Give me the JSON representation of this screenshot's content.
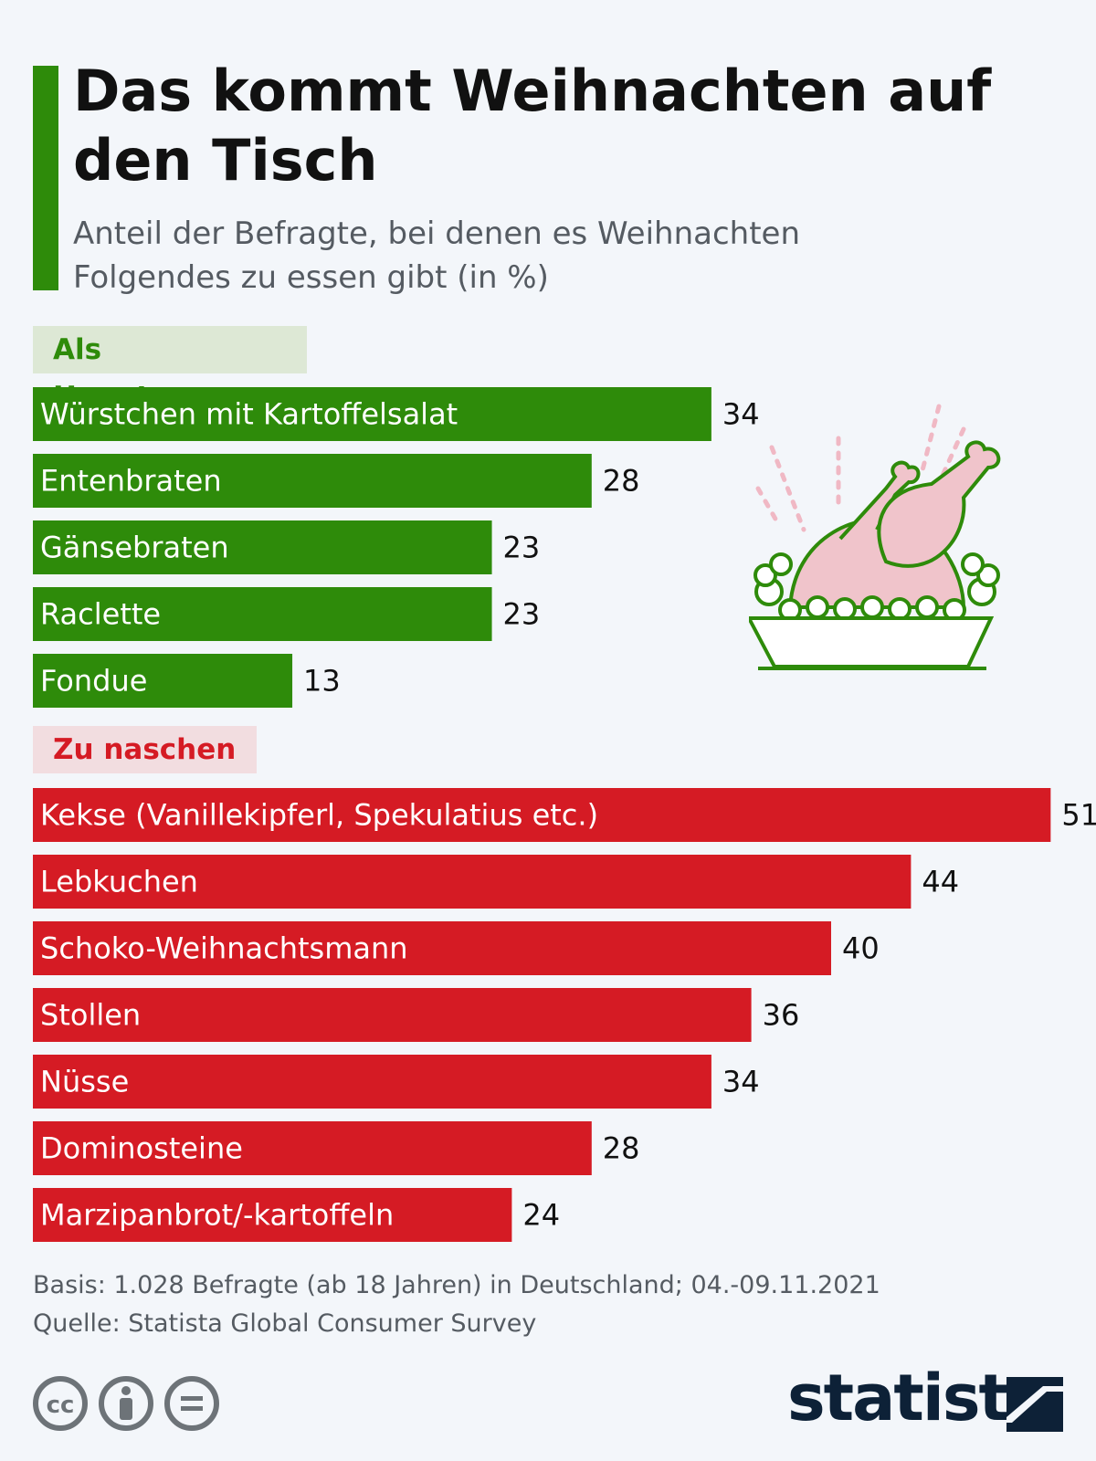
{
  "header": {
    "title": "Das kommt Weihnachten auf den Tisch",
    "subtitle": "Anteil der Befragte, bei denen es Weihnachten Folgendes zu essen gibt (in %)"
  },
  "colors": {
    "main_course": "#2e8b0a",
    "snacks": "#d51b24",
    "text": "#111111",
    "logo": "#0d2137"
  },
  "chart_data": {
    "type": "bar",
    "orientation": "horizontal",
    "title": "Das kommt Weihnachten auf den Tisch",
    "unit": "%",
    "groups": [
      {
        "name": "Als Hauptgang",
        "color": "#2e8b0a",
        "categories": [
          "Würstchen mit Kartoffelsalat",
          "Entenbraten",
          "Gänsebraten",
          "Raclette",
          "Fondue"
        ],
        "values": [
          34,
          28,
          23,
          23,
          13
        ]
      },
      {
        "name": "Zu naschen",
        "color": "#d51b24",
        "categories": [
          "Kekse (Vanillekipferl, Spekulatius etc.)",
          "Lebkuchen",
          "Schoko-Weihnachtsmann",
          "Stollen",
          "Nüsse",
          "Dominosteine",
          "Marzipanbrot/-kartoffeln"
        ],
        "values": [
          51,
          44,
          40,
          36,
          34,
          28,
          24
        ]
      }
    ]
  },
  "footer": {
    "basis": "Basis: 1.028 Befragte (ab 18 Jahren) in Deutschland; 04.-09.11.2021",
    "source": "Quelle: Statista Global Consumer Survey",
    "brand": "statista"
  },
  "icons": {
    "illustration": "roast-chicken-icon",
    "license": [
      "cc-icon",
      "attribution-icon",
      "no-derivatives-icon"
    ],
    "logo": "statista-logo-icon"
  }
}
